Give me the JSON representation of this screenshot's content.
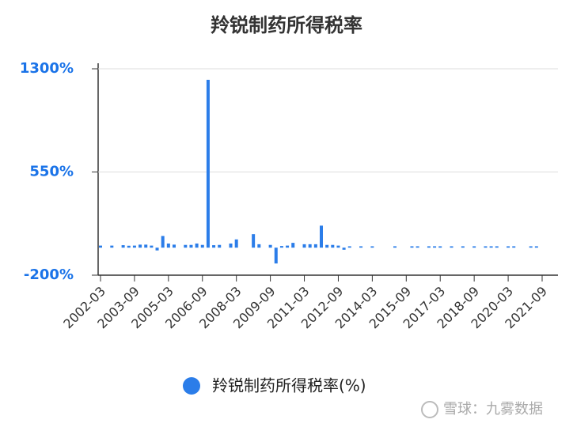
{
  "chart_data": {
    "type": "bar",
    "title": "羚锐制药所得税率",
    "categories": [
      "2002-03",
      null,
      null,
      null,
      null,
      null,
      "2003-09",
      null,
      null,
      null,
      null,
      null,
      "2005-03",
      null,
      null,
      null,
      null,
      null,
      "2006-09",
      null,
      null,
      null,
      null,
      null,
      "2008-03",
      null,
      null,
      null,
      null,
      null,
      "2009-09",
      null,
      null,
      null,
      null,
      null,
      "2011-03",
      null,
      null,
      null,
      null,
      null,
      "2012-09",
      null,
      null,
      null,
      null,
      null,
      "2014-03",
      null,
      null,
      null,
      null,
      null,
      "2015-09",
      null,
      null,
      null,
      null,
      null,
      "2017-03",
      null,
      null,
      null,
      null,
      null,
      "2018-09",
      null,
      null,
      null,
      null,
      null,
      "2020-03",
      null,
      null,
      null,
      null,
      null,
      "2021-09"
    ],
    "series": [
      {
        "name": "羚锐制药所得税率(%)",
        "color": "#2b7de9",
        "values": [
          15,
          null,
          15,
          null,
          18,
          14,
          15,
          22,
          22,
          15,
          -20,
          85,
          30,
          22,
          null,
          20,
          20,
          30,
          20,
          1220,
          18,
          20,
          null,
          30,
          60,
          null,
          null,
          98,
          25,
          null,
          20,
          -115,
          12,
          15,
          35,
          null,
          25,
          25,
          25,
          160,
          20,
          20,
          15,
          -15,
          10,
          null,
          10,
          null,
          10,
          null,
          null,
          null,
          10,
          null,
          null,
          10,
          10,
          null,
          10,
          10,
          10,
          null,
          10,
          null,
          10,
          null,
          10,
          null,
          10,
          10,
          10,
          null,
          10,
          10,
          null,
          null,
          10,
          10,
          null
        ]
      }
    ],
    "ylim": [
      -200,
      1300
    ],
    "yticks": [
      {
        "value": -200,
        "label": "-200%"
      },
      {
        "value": 550,
        "label": "550%"
      },
      {
        "value": 1300,
        "label": "1300%"
      }
    ],
    "grid": true,
    "legend": "bottom",
    "watermark": "雪球：九雾数据"
  }
}
